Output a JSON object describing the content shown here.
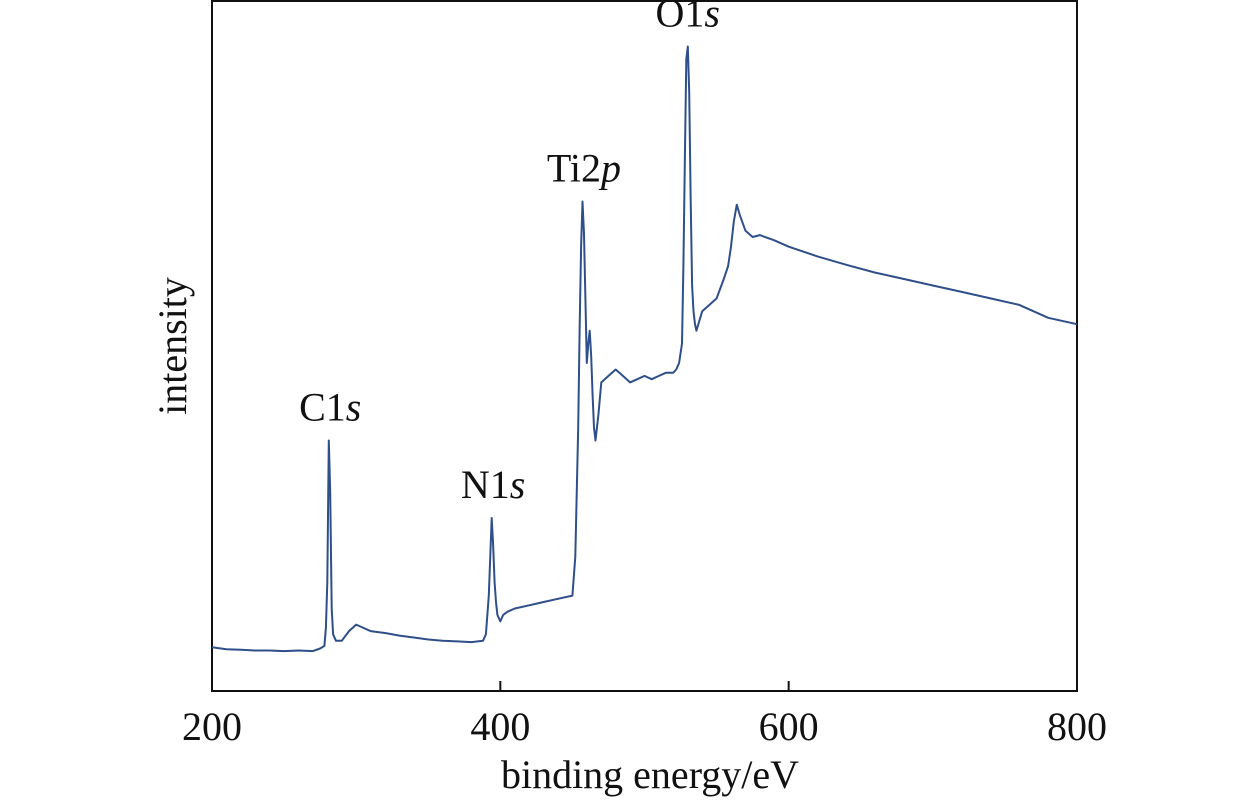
{
  "chart_data": {
    "type": "line",
    "xlabel": "binding energy/eV",
    "ylabel": "intensity",
    "xlim": [
      200,
      800
    ],
    "ylim": [
      0,
      100
    ],
    "x_ticks": [
      "200",
      "400",
      "600",
      "800"
    ],
    "y_ticks_shown": false,
    "grid": false,
    "legend": "none",
    "line_color": "#2f4f8a",
    "series": [
      {
        "x": [
          200,
          210,
          220,
          230,
          240,
          250,
          260,
          270,
          275,
          278,
          279,
          280,
          281,
          282,
          283,
          284,
          286,
          290,
          295,
          300,
          305,
          310,
          320,
          330,
          340,
          350,
          360,
          370,
          380,
          388,
          390,
          392,
          394,
          395,
          396,
          397,
          398,
          400,
          402,
          405,
          410,
          420,
          430,
          440,
          450,
          452,
          454,
          455,
          456,
          457,
          458,
          459,
          460,
          461,
          462,
          463,
          464,
          465,
          466,
          468,
          470,
          475,
          480,
          485,
          490,
          495,
          500,
          505,
          510,
          515,
          520,
          522,
          524,
          526,
          527,
          528,
          529,
          530,
          531,
          532,
          533,
          534,
          535,
          536,
          538,
          540,
          545,
          550,
          555,
          558,
          560,
          562,
          564,
          566,
          570,
          575,
          580,
          590,
          600,
          620,
          640,
          660,
          680,
          700,
          720,
          740,
          760,
          780,
          800
        ],
        "values": [
          6.0,
          5.7,
          5.6,
          5.5,
          5.5,
          5.4,
          5.5,
          5.4,
          5.8,
          6.2,
          9.0,
          16.0,
          38.0,
          30.0,
          12.0,
          8.0,
          7.0,
          7.0,
          8.5,
          9.5,
          9.0,
          8.5,
          8.2,
          7.8,
          7.5,
          7.2,
          7.0,
          6.9,
          6.8,
          7.0,
          8.0,
          14.0,
          26.0,
          22.0,
          16.0,
          13.0,
          11.0,
          10.0,
          11.0,
          11.5,
          12.0,
          12.5,
          13.0,
          13.5,
          14.0,
          20.0,
          40.0,
          55.0,
          68.0,
          75.0,
          70.0,
          60.0,
          50.0,
          53.0,
          55.0,
          51.0,
          45.0,
          40.0,
          38.0,
          42.0,
          47.0,
          48.0,
          49.0,
          48.0,
          47.0,
          47.5,
          48.0,
          47.5,
          48.0,
          48.5,
          48.5,
          49.0,
          50.0,
          53.0,
          65.0,
          82.0,
          97.0,
          99.0,
          92.0,
          76.0,
          62.0,
          58.0,
          56.0,
          55.0,
          56.5,
          58.0,
          59.0,
          60.0,
          63.0,
          65.0,
          68.0,
          72.0,
          74.5,
          73.0,
          70.5,
          69.5,
          69.8,
          69.0,
          68.0,
          66.5,
          65.2,
          64.0,
          63.0,
          62.0,
          61.0,
          60.0,
          59.0,
          57.0,
          56.0
        ]
      }
    ],
    "annotations": [
      {
        "label": "C1",
        "italic_suffix": "s",
        "x": 282
      },
      {
        "label": "N1",
        "italic_suffix": "s",
        "x": 395
      },
      {
        "label": "Ti2",
        "italic_suffix": "p",
        "x": 458
      },
      {
        "label": "O1",
        "italic_suffix": "s",
        "x": 530
      }
    ]
  }
}
